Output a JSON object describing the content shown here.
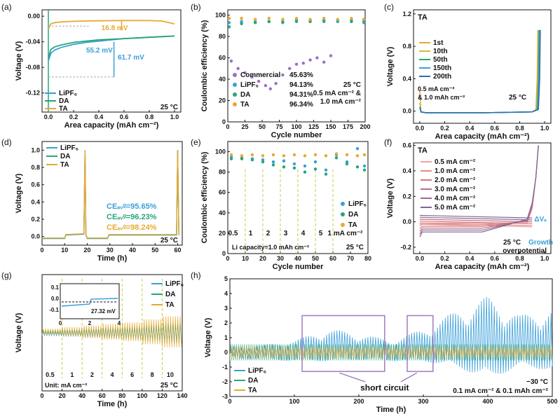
{
  "colors": {
    "lipf6": "#3a9fd8",
    "da": "#27a57c",
    "ta": "#e8a930",
    "commercial": "#9b6fc9",
    "anno": "#3a9fd8",
    "box": "#a07cc0",
    "dash": "#c9c94a"
  },
  "chart_data": [
    {
      "id": "a",
      "panel_label": "(a)",
      "type": "line",
      "xlabel": "Area capacity (mAh cm⁻²)",
      "ylabel": "Voltage (V)",
      "xlim": [
        -0.05,
        1.05
      ],
      "ylim": [
        -0.15,
        0.01
      ],
      "xticks": [
        "0.0",
        "0.2",
        "0.4",
        "0.6",
        "0.8",
        "1.0"
      ],
      "yticks": [
        "0.00",
        "-0.04",
        "-0.08",
        "-0.12"
      ],
      "legend": [
        "LiPF₆",
        "DA",
        "TA"
      ],
      "condition": "25 °C",
      "annotations": [
        "16.8 mV",
        "55.2 mV",
        "61.7 mV"
      ],
      "series": [
        {
          "name": "LiPF₆",
          "x": [
            0.0,
            0.02,
            0.05,
            0.1,
            0.2,
            0.3,
            0.4,
            0.5,
            0.6,
            0.7,
            0.8,
            0.9,
            1.0
          ],
          "y": [
            -0.07,
            -0.058,
            -0.053,
            -0.049,
            -0.044,
            -0.041,
            -0.039,
            -0.037,
            -0.035,
            -0.034,
            -0.033,
            -0.032,
            -0.031
          ]
        },
        {
          "name": "DA",
          "x": [
            0.0,
            0.02,
            0.05,
            0.1,
            0.2,
            0.3,
            0.4,
            0.5,
            0.6,
            0.7,
            0.8,
            0.9,
            1.0
          ],
          "y": [
            -0.065,
            -0.052,
            -0.048,
            -0.045,
            -0.041,
            -0.039,
            -0.037,
            -0.036,
            -0.035,
            -0.034,
            -0.033,
            -0.032,
            -0.031
          ]
        },
        {
          "name": "TA",
          "x": [
            0.0,
            0.02,
            0.05,
            0.1,
            0.2,
            0.3,
            0.4,
            0.5,
            0.6,
            0.7,
            0.8,
            0.9,
            1.0
          ],
          "y": [
            -0.02,
            -0.012,
            -0.01,
            -0.009,
            -0.008,
            -0.0075,
            -0.0072,
            -0.007,
            -0.0068,
            -0.0068,
            -0.0069,
            -0.0075,
            -0.012
          ]
        }
      ]
    },
    {
      "id": "b",
      "panel_label": "(b)",
      "type": "scatter",
      "xlabel": "Cycle number",
      "ylabel": "Coulombic efficiency (%)",
      "xlim": [
        0,
        200
      ],
      "ylim": [
        0,
        105
      ],
      "xticks": [
        "0",
        "25",
        "50",
        "75",
        "100",
        "125",
        "150",
        "175",
        "200"
      ],
      "yticks": [
        "0",
        "20",
        "40",
        "60",
        "80",
        "100"
      ],
      "legend": [
        {
          "name": "Commercial",
          "value": "45.63%"
        },
        {
          "name": "LiPF₆",
          "value": "94.13%"
        },
        {
          "name": "DA",
          "value": "94.31%"
        },
        {
          "name": "TA",
          "value": "96.34%"
        }
      ],
      "condition": [
        "25 °C",
        "0.5 mA cm⁻² &",
        "1.0 mA cm⁻²"
      ],
      "series": [
        {
          "name": "Commercial",
          "x": [
            5,
            15,
            25,
            35,
            45,
            55,
            62,
            70,
            80,
            90,
            100,
            110,
            120,
            130,
            140,
            150
          ],
          "y": [
            57,
            50,
            46,
            42,
            38,
            34,
            31,
            36,
            44,
            50,
            54,
            55,
            58,
            60,
            56,
            62
          ]
        },
        {
          "name": "LiPF₆",
          "x": [
            2,
            20,
            40,
            60,
            80,
            100,
            120,
            140,
            160,
            180,
            198
          ],
          "y": [
            93,
            94,
            94,
            94,
            93,
            94,
            95,
            94,
            94,
            95,
            93
          ]
        },
        {
          "name": "DA",
          "x": [
            2,
            20,
            40,
            60,
            80,
            100,
            120,
            140,
            160,
            180,
            198
          ],
          "y": [
            89,
            92,
            93,
            94,
            94,
            95,
            94,
            95,
            95,
            94,
            95
          ]
        },
        {
          "name": "TA",
          "x": [
            2,
            20,
            40,
            60,
            80,
            100,
            120,
            140,
            160,
            180,
            198
          ],
          "y": [
            97,
            97,
            96,
            97,
            96,
            97,
            96,
            97,
            96,
            97,
            96
          ]
        }
      ]
    },
    {
      "id": "c",
      "panel_label": "(c)",
      "type": "line",
      "xlabel": "Area capacity (mAh cm⁻²)",
      "ylabel": "Voltage (V)",
      "xlim": [
        -0.05,
        1.05
      ],
      "ylim": [
        -0.15,
        1.25
      ],
      "xticks": [
        "0.0",
        "0.2",
        "0.4",
        "0.6",
        "0.8",
        "1.0"
      ],
      "yticks": [
        "0.0",
        "0.4",
        "0.8",
        "1.2"
      ],
      "title_tag": "TA",
      "legend": [
        "1st",
        "10th",
        "50th",
        "150th",
        "200th"
      ],
      "condition": [
        "0.5 mA cm⁻²",
        "& 1.0 mAh cm⁻²",
        "25 °C"
      ],
      "series": [
        {
          "name": "1st",
          "x": [
            0.0,
            0.01,
            0.05,
            0.5,
            0.9,
            0.93,
            0.94,
            0.945
          ],
          "y": [
            0.25,
            -0.01,
            -0.02,
            -0.02,
            -0.01,
            0.02,
            0.4,
            1.0
          ]
        },
        {
          "name": "10th",
          "x": [
            0.0,
            0.01,
            0.05,
            0.5,
            0.9,
            0.935,
            0.945,
            0.95
          ],
          "y": [
            0.1,
            -0.01,
            -0.02,
            -0.02,
            -0.01,
            0.02,
            0.4,
            1.0
          ]
        },
        {
          "name": "50th",
          "x": [
            0.0,
            0.01,
            0.05,
            0.5,
            0.9,
            0.94,
            0.95,
            0.955
          ],
          "y": [
            0.05,
            -0.01,
            -0.02,
            -0.02,
            -0.01,
            0.02,
            0.4,
            1.0
          ]
        },
        {
          "name": "150th",
          "x": [
            0.0,
            0.01,
            0.05,
            0.5,
            0.9,
            0.945,
            0.955,
            0.96
          ],
          "y": [
            0.05,
            -0.01,
            -0.02,
            -0.02,
            -0.01,
            0.02,
            0.4,
            1.0
          ]
        },
        {
          "name": "200th",
          "x": [
            0.0,
            0.01,
            0.05,
            0.5,
            0.9,
            0.95,
            0.96,
            0.965
          ],
          "y": [
            0.05,
            -0.01,
            -0.02,
            -0.02,
            -0.01,
            0.02,
            0.4,
            1.0
          ]
        }
      ]
    },
    {
      "id": "d",
      "panel_label": "(d)",
      "type": "line",
      "xlabel": "Time (h)",
      "ylabel": "Voltage (V)",
      "xlim": [
        0,
        62
      ],
      "ylim": [
        -0.1,
        1.1
      ],
      "xticks": [
        "0",
        "10",
        "20",
        "30",
        "40",
        "50",
        "60"
      ],
      "yticks": [
        "0.0",
        "0.2",
        "0.4",
        "0.6",
        "0.8",
        "1.0"
      ],
      "legend": [
        "LiPF₆",
        "DA",
        "TA"
      ],
      "condition": "25 °C",
      "ce_labels": [
        "CEₐᵥᵍ=95.65%",
        "CEₐᵥᵍ=96.23%",
        "CEₐᵥᵍ=98.24%"
      ],
      "series": [
        {
          "name": "baseline",
          "x": [
            0,
            10,
            10.5,
            18.5,
            19,
            19.4,
            20,
            29,
            29.5,
            59.5,
            60,
            60.5
          ],
          "y": [
            -0.02,
            -0.02,
            0.02,
            0.03,
            1.0,
            0.02,
            -0.02,
            -0.02,
            0.02,
            0.02,
            1.0,
            0.02
          ]
        }
      ]
    },
    {
      "id": "e",
      "panel_label": "(e)",
      "type": "scatter",
      "xlabel": "Cycle number",
      "ylabel": "Coulombic efficiency (%)",
      "xlim": [
        0,
        80
      ],
      "ylim": [
        0,
        110
      ],
      "xticks": [
        "0",
        "10",
        "20",
        "30",
        "40",
        "50",
        "60",
        "70",
        "80"
      ],
      "yticks": [
        "0",
        "20",
        "40",
        "60",
        "80",
        "100"
      ],
      "legend": [
        "LiPF₆",
        "DA",
        "TA"
      ],
      "rate_labels": [
        "0.5",
        "1",
        "2",
        "3",
        "4",
        "5",
        "1 mA cm⁻²"
      ],
      "footnote": "Li capacity=1.0 mAh cm⁻²",
      "condition": "25 °C",
      "series": [
        {
          "name": "LiPF₆",
          "x": [
            2,
            8,
            14,
            20,
            26,
            32,
            38,
            44,
            50,
            56,
            62,
            68,
            74,
            78
          ],
          "y": [
            95,
            94,
            93,
            92,
            90,
            91,
            88,
            86,
            90,
            82,
            97,
            90,
            103,
            86
          ]
        },
        {
          "name": "DA",
          "x": [
            2,
            8,
            14,
            20,
            26,
            32,
            38,
            44,
            50,
            56,
            62,
            68,
            74,
            78
          ],
          "y": [
            93,
            93,
            92,
            90,
            87,
            85,
            84,
            80,
            83,
            78,
            94,
            88,
            85,
            82
          ]
        },
        {
          "name": "TA",
          "x": [
            2,
            8,
            14,
            20,
            26,
            32,
            38,
            44,
            50,
            56,
            62,
            68,
            74,
            78
          ],
          "y": [
            97,
            96,
            97,
            96,
            97,
            96,
            97,
            96,
            97,
            96,
            98,
            97,
            96,
            97
          ]
        }
      ]
    },
    {
      "id": "f",
      "panel_label": "(f)",
      "type": "line",
      "xlabel": "Area capacity (mAh cm⁻²)",
      "ylabel": "Voltage (V)",
      "xlim": [
        -0.05,
        1.05
      ],
      "ylim": [
        -0.25,
        0.62
      ],
      "xticks": [
        "0.0",
        "0.2",
        "0.4",
        "0.6",
        "0.8",
        "1.0"
      ],
      "yticks": [
        "-0.2",
        "0.0",
        "0.2",
        "0.4",
        "0.6"
      ],
      "title_tag": "TA",
      "legend": [
        "0.5 mA cm⁻²",
        "1.0 mA cm⁻²",
        "2.0 mA cm⁻²",
        "3.0 mA cm⁻²",
        "4.0 mA cm⁻²",
        "5.0 mA cm⁻²"
      ],
      "annotations": [
        "ΔVₑ",
        "25 °C",
        "Growth",
        "overpotential"
      ],
      "series": [
        {
          "name": "0.5 mA cm⁻²",
          "plateau": -0.01,
          "strip": 0.01
        },
        {
          "name": "1.0 mA cm⁻²",
          "plateau": -0.02,
          "strip": 0.02
        },
        {
          "name": "2.0 mA cm⁻²",
          "plateau": -0.035,
          "strip": 0.035
        },
        {
          "name": "3.0 mA cm⁻²",
          "plateau": -0.05,
          "strip": 0.05
        },
        {
          "name": "4.0 mA cm⁻²",
          "plateau": -0.065,
          "strip": 0.065
        },
        {
          "name": "5.0 mA cm⁻²",
          "plateau": -0.08,
          "strip": 0.08
        }
      ]
    },
    {
      "id": "g",
      "panel_label": "(g)",
      "type": "line",
      "xlabel": "Time (h)",
      "ylabel": "Voltage (V)",
      "xlim": [
        0,
        140
      ],
      "ylim": [
        -0.6,
        0.6
      ],
      "xticks": [
        "0",
        "20",
        "40",
        "60",
        "80",
        "100",
        "120",
        "140"
      ],
      "legend": [
        "LiPF₆",
        "DA",
        "TA"
      ],
      "rate_labels": [
        "0.5",
        "1",
        "2",
        "4",
        "6",
        "8",
        "10"
      ],
      "unit_label": "Unit: mA cm⁻²",
      "condition": "25 °C",
      "inset": {
        "xticks": [
          "0",
          "2",
          "4"
        ],
        "yticks": [
          "0.1",
          "0.0",
          "-0.1"
        ],
        "annotation": "27.32 mV"
      },
      "series": [
        {
          "name": "envelope",
          "x": [
            0,
            20,
            40,
            60,
            80,
            100,
            120,
            140
          ],
          "y": [
            0.02,
            0.03,
            0.04,
            0.05,
            0.06,
            0.08,
            0.1,
            0.12
          ]
        }
      ]
    },
    {
      "id": "h",
      "panel_label": "(h)",
      "type": "line",
      "xlabel": "Time (h)",
      "ylabel": "Voltage (V)",
      "xlim": [
        0,
        500
      ],
      "ylim": [
        -3,
        5
      ],
      "xticks": [
        "0",
        "100",
        "200",
        "300",
        "400",
        "500"
      ],
      "yticks": [
        "5",
        "4",
        "3",
        "2",
        "1",
        "0",
        "-1",
        "-2",
        "-3"
      ],
      "legend": [
        "LiPF₆",
        "DA",
        "TA"
      ],
      "annotation": "short circuit",
      "condition": [
        "−30 °C",
        "0.1 mA cm⁻² & 0.1 mAh cm⁻²"
      ],
      "series": [
        {
          "name": "LiPF₆ upper envelope",
          "x": [
            0,
            50,
            100,
            150,
            200,
            250,
            300,
            350,
            400,
            450,
            500
          ],
          "y": [
            0.4,
            0.5,
            0.8,
            1.6,
            1.3,
            0.8,
            1.6,
            2.8,
            3.8,
            2.5,
            3.0
          ]
        },
        {
          "name": "LiPF₆ lower envelope",
          "x": [
            0,
            50,
            100,
            150,
            200,
            250,
            300,
            350,
            400,
            450,
            500
          ],
          "y": [
            -0.4,
            -0.5,
            -0.6,
            -0.6,
            -0.5,
            -0.6,
            -0.6,
            -1.0,
            -1.8,
            -1.0,
            -1.2
          ]
        }
      ]
    }
  ]
}
